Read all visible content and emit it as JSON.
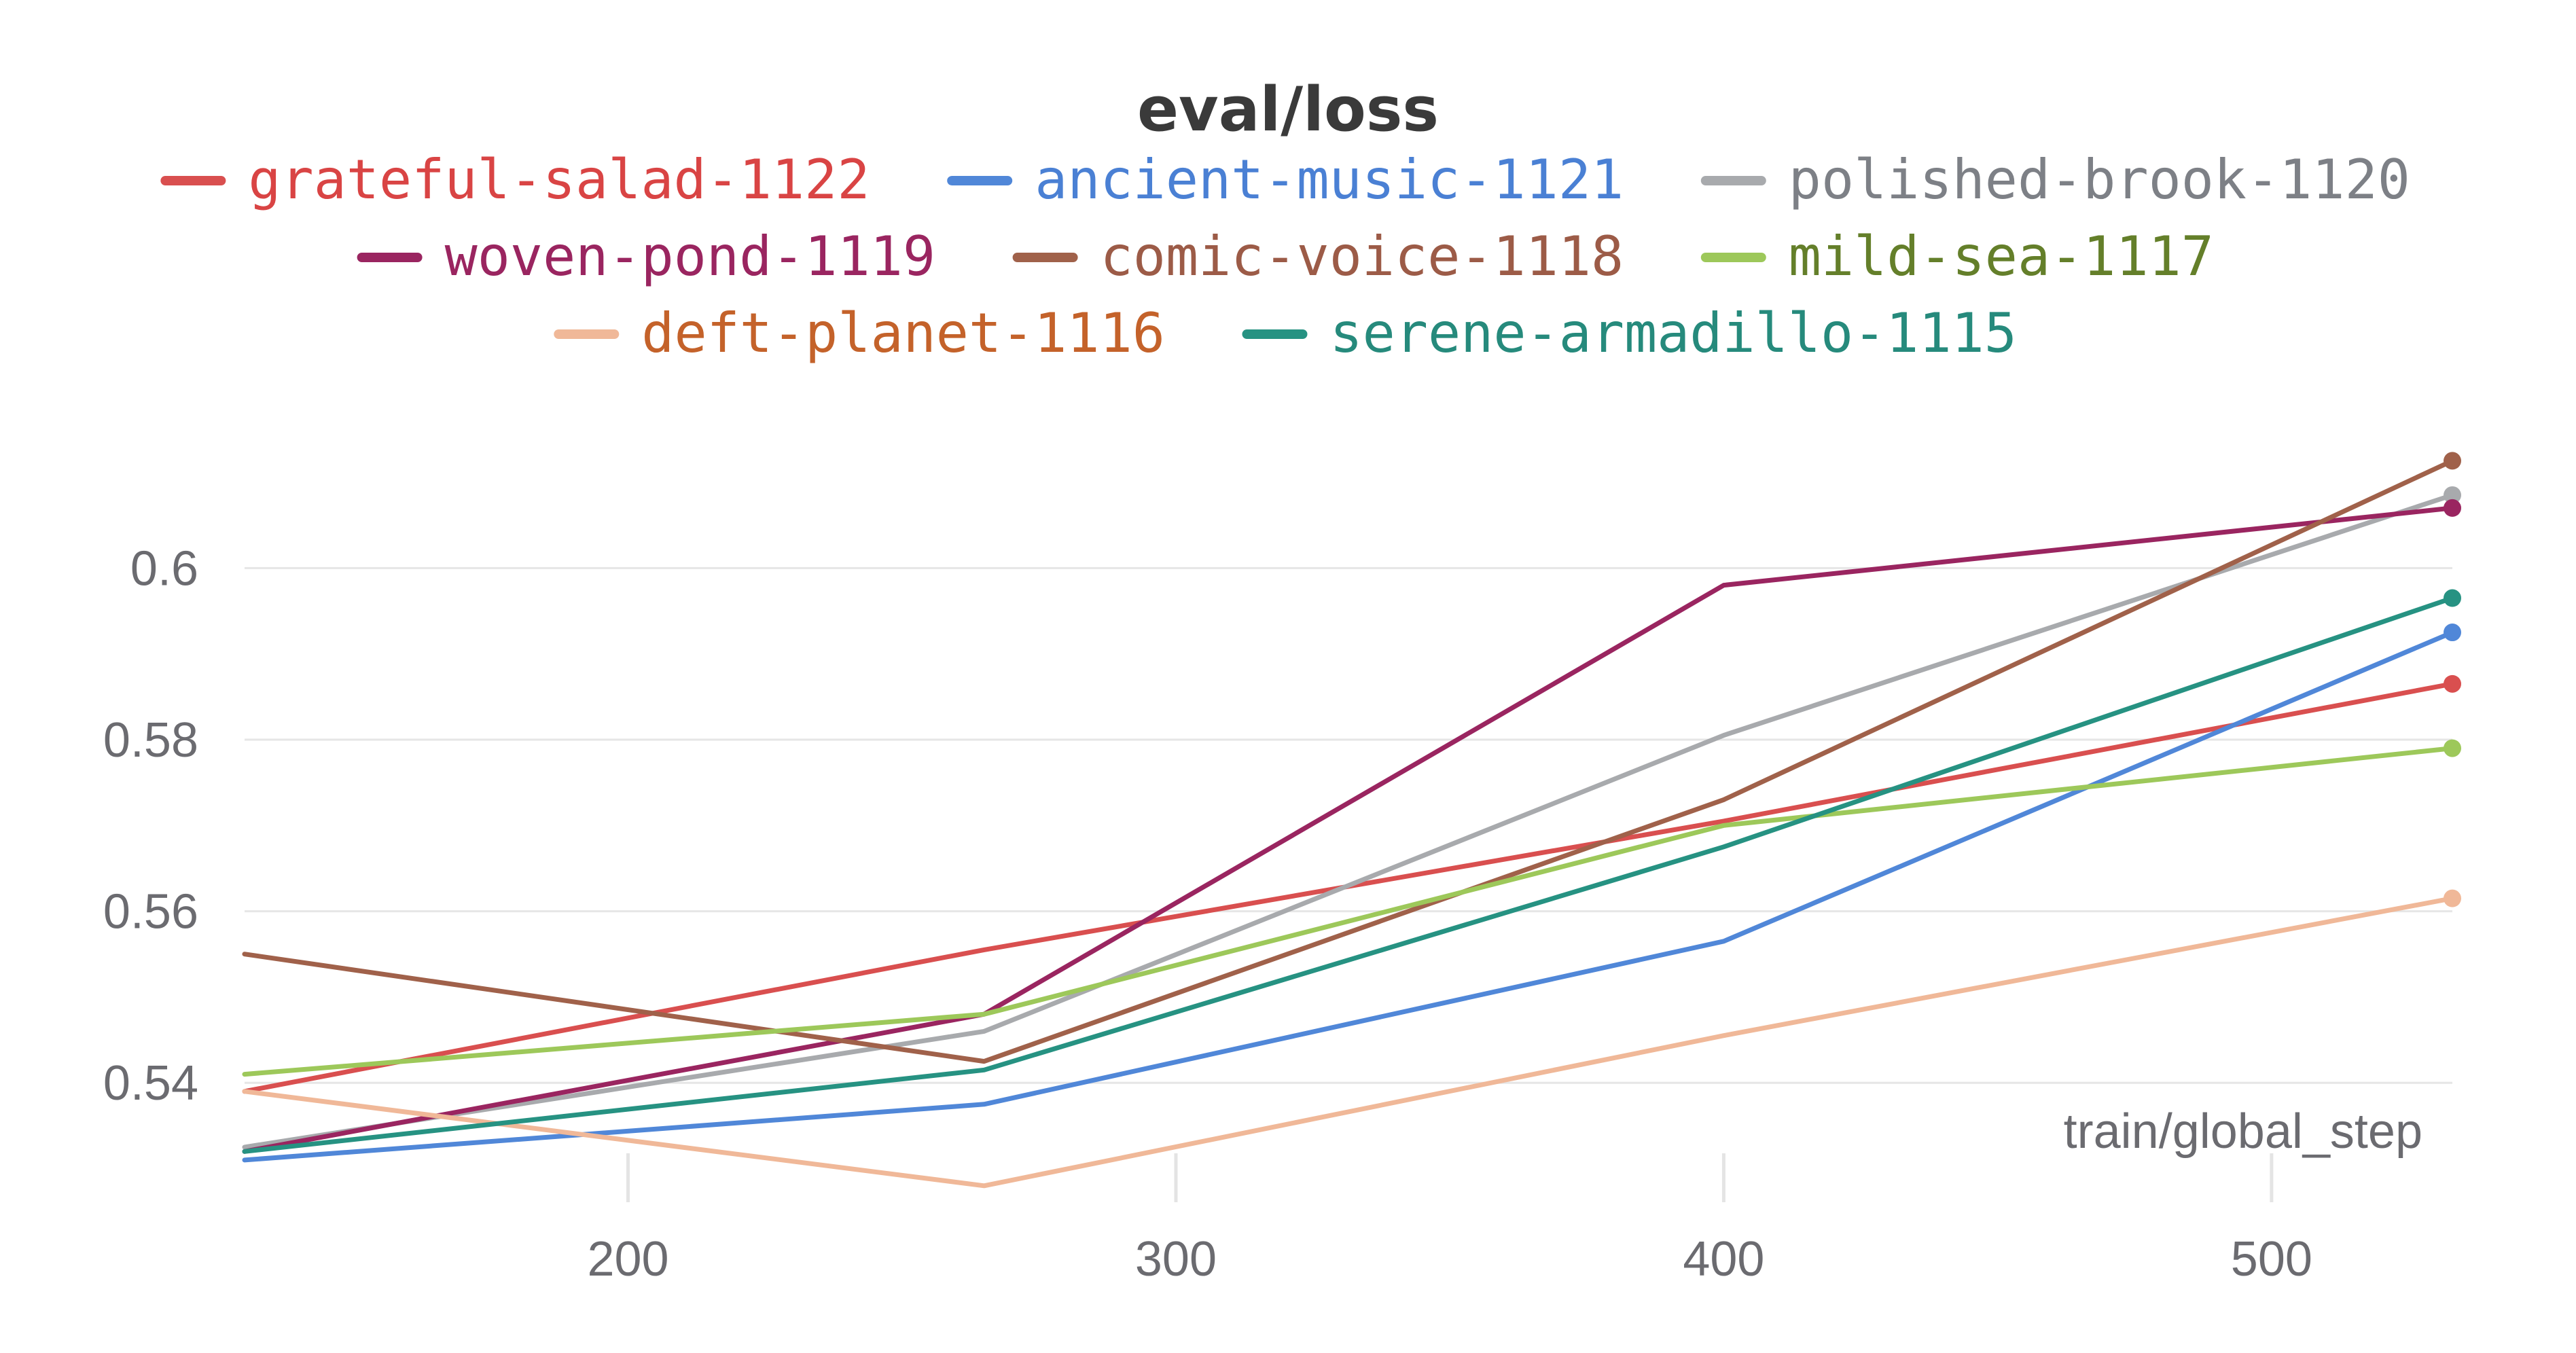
{
  "chart_data": {
    "type": "line",
    "title": "eval/loss",
    "xlabel": "train/global_step",
    "ylabel": "",
    "xlim": [
      130,
      533
    ],
    "ylim": [
      0.5245,
      0.6195
    ],
    "xticks": [
      200,
      300,
      400,
      500
    ],
    "xtick_labels": [
      "200",
      "300",
      "400",
      "500"
    ],
    "yticks": [
      0.54,
      0.56,
      0.58,
      0.6
    ],
    "ytick_labels": [
      "0.54",
      "0.56",
      "0.58",
      "0.6"
    ],
    "grid": true,
    "legend_position": "top-center",
    "x": [
      130,
      265,
      400,
      533
    ],
    "series": [
      {
        "name": "grateful-salad-1122",
        "color": "#d94f4f",
        "text_color": "#d94444",
        "values": [
          0.539,
          0.5555,
          0.5705,
          0.5865
        ]
      },
      {
        "name": "ancient-music-1121",
        "color": "#5087d8",
        "text_color": "#4a80d4",
        "values": [
          0.531,
          0.5375,
          0.5565,
          0.5925
        ]
      },
      {
        "name": "polished-brook-1120",
        "color": "#a8aaad",
        "text_color": "#7d8086",
        "values": [
          0.5325,
          0.546,
          0.5805,
          0.6085
        ]
      },
      {
        "name": "woven-pond-1119",
        "color": "#9a2560",
        "text_color": "#9a2560",
        "values": [
          0.532,
          0.548,
          0.598,
          0.607
        ]
      },
      {
        "name": "comic-voice-1118",
        "color": "#a0614a",
        "text_color": "#9c5b47",
        "values": [
          0.555,
          0.5425,
          0.573,
          0.6125
        ]
      },
      {
        "name": "mild-sea-1117",
        "color": "#9dc85a",
        "text_color": "#647f2a",
        "values": [
          0.541,
          0.548,
          0.57,
          0.579
        ]
      },
      {
        "name": "deft-planet-1116",
        "color": "#f0b898",
        "text_color": "#c4622a",
        "values": [
          0.539,
          0.528,
          0.5455,
          0.5615
        ]
      },
      {
        "name": "serene-armadillo-1115",
        "color": "#269282",
        "text_color": "#268a7c",
        "values": [
          0.532,
          0.5415,
          0.5675,
          0.5965
        ]
      }
    ]
  }
}
